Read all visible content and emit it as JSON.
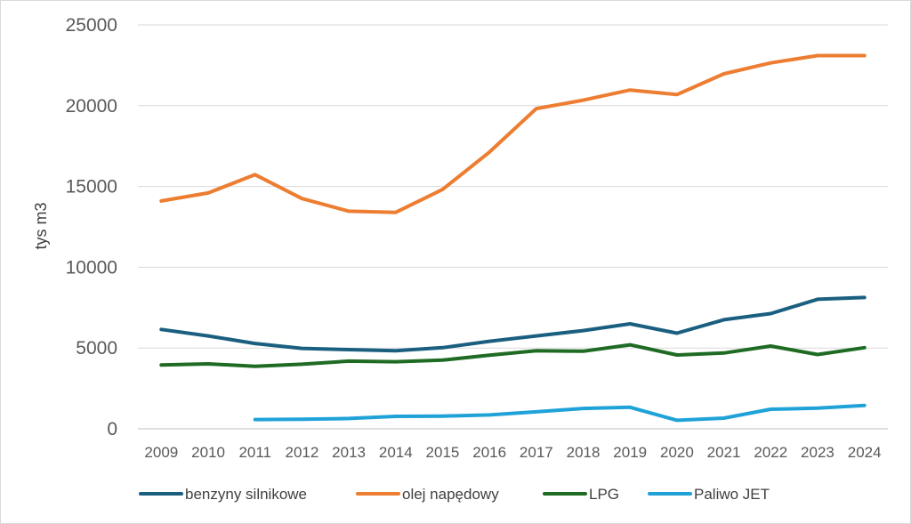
{
  "chart_data": {
    "type": "line",
    "ylabel": "tys m3",
    "xlabel": "",
    "ylim": [
      0,
      25000
    ],
    "yticks": [
      0,
      5000,
      10000,
      15000,
      20000,
      25000
    ],
    "grid": true,
    "legend_position": "bottom",
    "categories": [
      "2009",
      "2010",
      "2011",
      "2012",
      "2013",
      "2014",
      "2015",
      "2016",
      "2017",
      "2018",
      "2019",
      "2020",
      "2021",
      "2022",
      "2023",
      "2024"
    ],
    "series": [
      {
        "name": "benzyny silnikowe",
        "color": "#1a5f80",
        "values": [
          6150,
          5750,
          5280,
          4980,
          4900,
          4830,
          5020,
          5420,
          5750,
          6080,
          6500,
          5920,
          6750,
          7130,
          8020,
          8130
        ]
      },
      {
        "name": "olej napędowy",
        "color": "#ed7d31",
        "values": [
          14100,
          14600,
          15730,
          14250,
          13470,
          13400,
          14820,
          17130,
          19820,
          20340,
          20970,
          20690,
          21970,
          22650,
          23100,
          23100
        ]
      },
      {
        "name": "LPG",
        "color": "#1f6b23",
        "values": [
          3950,
          4020,
          3870,
          4000,
          4190,
          4150,
          4250,
          4560,
          4830,
          4800,
          5200,
          4570,
          4690,
          5120,
          4600,
          5020
        ]
      },
      {
        "name": "Paliwo JET",
        "color": "#1fa2d8",
        "values": [
          null,
          null,
          570,
          590,
          640,
          770,
          790,
          860,
          1050,
          1260,
          1330,
          530,
          660,
          1210,
          1280,
          1450
        ]
      }
    ]
  }
}
